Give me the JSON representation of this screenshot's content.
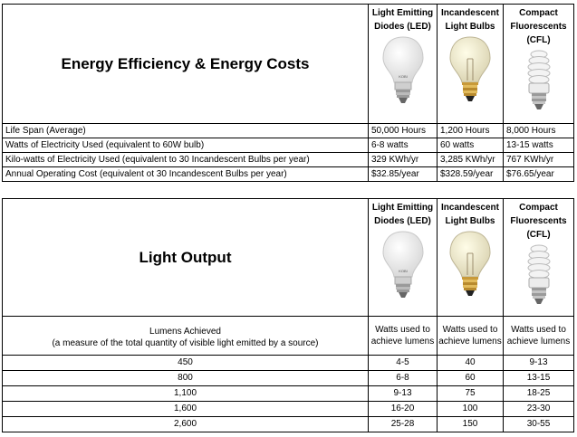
{
  "table1": {
    "title": "Energy Efficiency & Energy Costs",
    "columns": [
      "Light Emitting Diodes (LED)",
      "Incandescent Light Bulbs",
      "Compact Fluorescents (CFL)"
    ],
    "bulbs": [
      {
        "icon": "led-bulb-icon",
        "brand": "KOBI"
      },
      {
        "icon": "incandescent-bulb-icon"
      },
      {
        "icon": "cfl-bulb-icon"
      }
    ],
    "rows": [
      {
        "label": "Life Span (Average)",
        "values": [
          "50,000 Hours",
          "1,200 Hours",
          "8,000 Hours"
        ]
      },
      {
        "label": "Watts of Electricity Used (equivalent to 60W bulb)",
        "values": [
          "6-8 watts",
          "60 watts",
          "13-15 watts"
        ]
      },
      {
        "label": "Kilo-watts of Electricity Used (equivalent to 30 Incandescent Bulbs per year)",
        "values": [
          "329 KWh/yr",
          "3,285 KWh/yr",
          "767 KWh/yr"
        ]
      },
      {
        "label": "Annual Operating Cost (equivalent ot 30 Incandescent Bulbs per year)",
        "values": [
          "$32.85/year",
          "$328.59/year",
          "$76.65/year"
        ]
      }
    ]
  },
  "table2": {
    "title": "Light Output",
    "columns": [
      "Light Emitting Diodes (LED)",
      "Incandescent Light Bulbs",
      "Compact Fluorescents (CFL)"
    ],
    "bulbs": [
      {
        "icon": "led-bulb-icon",
        "brand": "KOBI"
      },
      {
        "icon": "incandescent-bulb-icon"
      },
      {
        "icon": "cfl-bulb-icon"
      }
    ],
    "lumens_header": {
      "line1": "Lumens Achieved",
      "line2": "(a measure of the total quantity of visible light emitted by a source)"
    },
    "watts_headers": [
      "Watts used to achieve lumens",
      "Watts used to achieve lumens",
      "Watts used to achieve lumens"
    ],
    "rows": [
      {
        "lumens": "450",
        "values": [
          "4-5",
          "40",
          "9-13"
        ]
      },
      {
        "lumens": "800",
        "values": [
          "6-8",
          "60",
          "13-15"
        ]
      },
      {
        "lumens": "1,100",
        "values": [
          "9-13",
          "75",
          "18-25"
        ]
      },
      {
        "lumens": "1,600",
        "values": [
          "16-20",
          "100",
          "23-30"
        ]
      },
      {
        "lumens": "2,600",
        "values": [
          "25-28",
          "150",
          "30-55"
        ]
      }
    ]
  }
}
